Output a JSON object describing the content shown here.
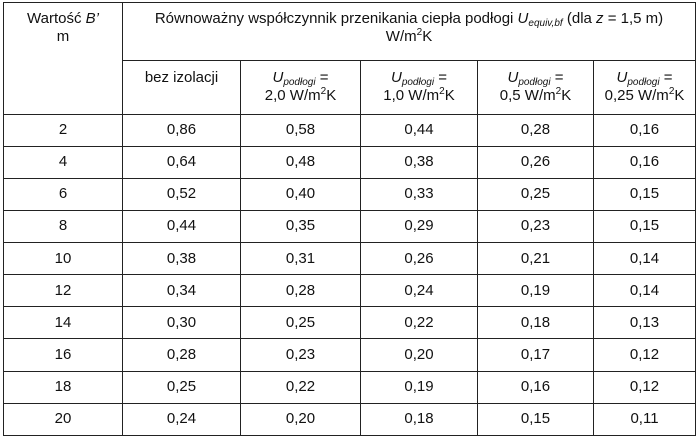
{
  "header": {
    "col0_line1_prefix": "Wartość ",
    "col0_line1_var": "B’",
    "col0_line2": "m",
    "title_prefix": "Równoważny współczynnik przenikania ciepła podłogi ",
    "title_var": "U",
    "title_sub": "equiv,bf",
    "title_mid": " (dla ",
    "title_z": "z",
    "title_end": " = 1,5 m)",
    "unit_prefix": "W/m",
    "unit_sup": "2",
    "unit_suffix": "K"
  },
  "subheaders": {
    "col1": "bez izolacji",
    "u_var": "U",
    "u_sub": "podłogi",
    "eq": " =",
    "unit_m": " W/m",
    "unit_sup": "2",
    "unit_k": "K",
    "values": [
      "2,0",
      "1,0",
      "0,5",
      "0,25"
    ]
  },
  "rows": [
    [
      "2",
      "0,86",
      "0,58",
      "0,44",
      "0,28",
      "0,16"
    ],
    [
      "4",
      "0,64",
      "0,48",
      "0,38",
      "0,26",
      "0,16"
    ],
    [
      "6",
      "0,52",
      "0,40",
      "0,33",
      "0,25",
      "0,15"
    ],
    [
      "8",
      "0,44",
      "0,35",
      "0,29",
      "0,23",
      "0,15"
    ],
    [
      "10",
      "0,38",
      "0,31",
      "0,26",
      "0,21",
      "0,14"
    ],
    [
      "12",
      "0,34",
      "0,28",
      "0,24",
      "0,19",
      "0,14"
    ],
    [
      "14",
      "0,30",
      "0,25",
      "0,22",
      "0,18",
      "0,13"
    ],
    [
      "16",
      "0,28",
      "0,23",
      "0,20",
      "0,17",
      "0,12"
    ],
    [
      "18",
      "0,25",
      "0,22",
      "0,19",
      "0,16",
      "0,12"
    ],
    [
      "20",
      "0,24",
      "0,20",
      "0,18",
      "0,15",
      "0,11"
    ]
  ]
}
